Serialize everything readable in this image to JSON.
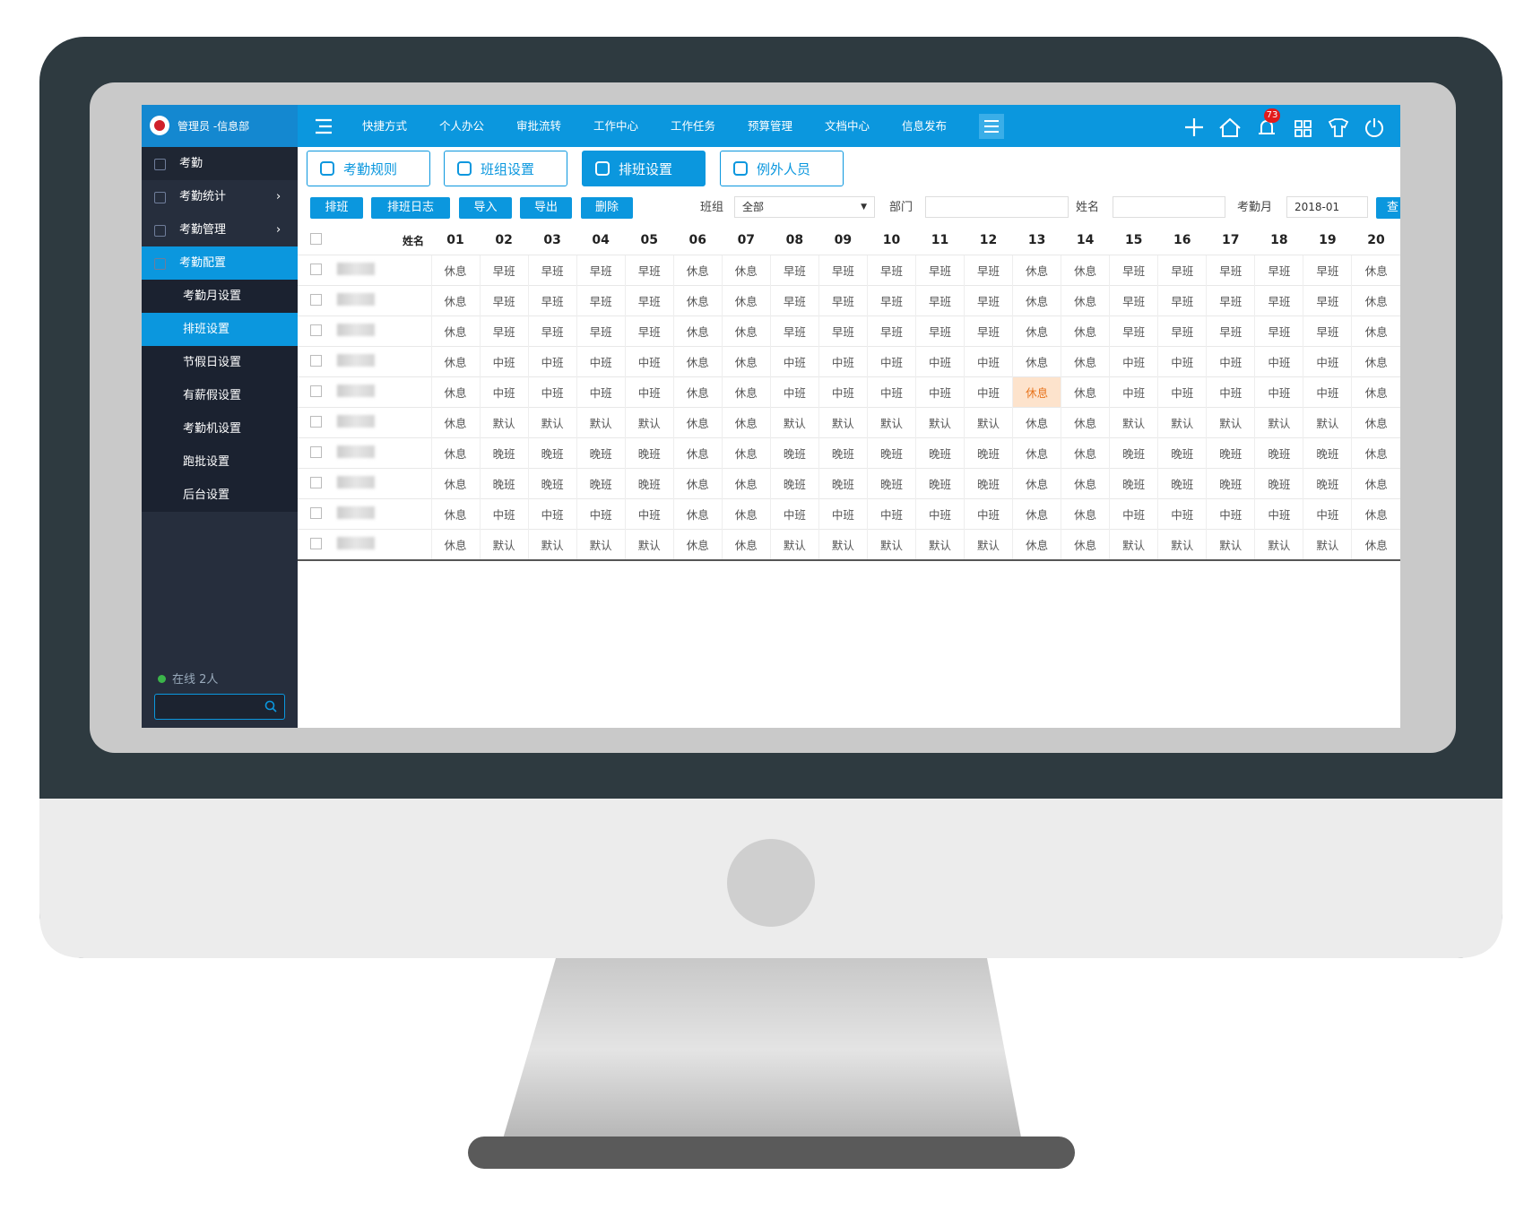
{
  "header": {
    "user": "管理员 -信息部",
    "nav": [
      "快捷方式",
      "个人办公",
      "审批流转",
      "工作中心",
      "工作任务",
      "预算管理",
      "文档中心",
      "信息发布"
    ],
    "badge": "73"
  },
  "sidebar": {
    "menu": [
      "考勤",
      "考勤统计",
      "考勤管理",
      "考勤配置"
    ],
    "submenu": [
      "考勤月设置",
      "排班设置",
      "节假日设置",
      "有薪假设置",
      "考勤机设置",
      "跑批设置",
      "后台设置"
    ],
    "online": "在线 2人"
  },
  "tabs": [
    "考勤规则",
    "班组设置",
    "排班设置",
    "例外人员"
  ],
  "toolbar": {
    "buttons": [
      "排班",
      "排班日志",
      "导入",
      "导出",
      "删除"
    ],
    "group_label": "班组",
    "group_value": "全部",
    "dept_label": "部门",
    "name_label": "姓名",
    "month_label": "考勤月",
    "month_value": "2018-01",
    "search": "查"
  },
  "table": {
    "name_header": "姓名",
    "days": [
      "01",
      "02",
      "03",
      "04",
      "05",
      "06",
      "07",
      "08",
      "09",
      "10",
      "11",
      "12",
      "13",
      "14",
      "15",
      "16",
      "17",
      "18",
      "19",
      "20"
    ],
    "rows": [
      [
        "休息",
        "早班",
        "早班",
        "早班",
        "早班",
        "休息",
        "休息",
        "早班",
        "早班",
        "早班",
        "早班",
        "早班",
        "休息",
        "休息",
        "早班",
        "早班",
        "早班",
        "早班",
        "早班",
        "休息"
      ],
      [
        "休息",
        "早班",
        "早班",
        "早班",
        "早班",
        "休息",
        "休息",
        "早班",
        "早班",
        "早班",
        "早班",
        "早班",
        "休息",
        "休息",
        "早班",
        "早班",
        "早班",
        "早班",
        "早班",
        "休息"
      ],
      [
        "休息",
        "早班",
        "早班",
        "早班",
        "早班",
        "休息",
        "休息",
        "早班",
        "早班",
        "早班",
        "早班",
        "早班",
        "休息",
        "休息",
        "早班",
        "早班",
        "早班",
        "早班",
        "早班",
        "休息"
      ],
      [
        "休息",
        "中班",
        "中班",
        "中班",
        "中班",
        "休息",
        "休息",
        "中班",
        "中班",
        "中班",
        "中班",
        "中班",
        "休息",
        "休息",
        "中班",
        "中班",
        "中班",
        "中班",
        "中班",
        "休息"
      ],
      [
        "休息",
        "中班",
        "中班",
        "中班",
        "中班",
        "休息",
        "休息",
        "中班",
        "中班",
        "中班",
        "中班",
        "中班",
        "休息",
        "休息",
        "中班",
        "中班",
        "中班",
        "中班",
        "中班",
        "休息"
      ],
      [
        "休息",
        "默认",
        "默认",
        "默认",
        "默认",
        "休息",
        "休息",
        "默认",
        "默认",
        "默认",
        "默认",
        "默认",
        "休息",
        "休息",
        "默认",
        "默认",
        "默认",
        "默认",
        "默认",
        "休息"
      ],
      [
        "休息",
        "晚班",
        "晚班",
        "晚班",
        "晚班",
        "休息",
        "休息",
        "晚班",
        "晚班",
        "晚班",
        "晚班",
        "晚班",
        "休息",
        "休息",
        "晚班",
        "晚班",
        "晚班",
        "晚班",
        "晚班",
        "休息"
      ],
      [
        "休息",
        "晚班",
        "晚班",
        "晚班",
        "晚班",
        "休息",
        "休息",
        "晚班",
        "晚班",
        "晚班",
        "晚班",
        "晚班",
        "休息",
        "休息",
        "晚班",
        "晚班",
        "晚班",
        "晚班",
        "晚班",
        "休息"
      ],
      [
        "休息",
        "中班",
        "中班",
        "中班",
        "中班",
        "休息",
        "休息",
        "中班",
        "中班",
        "中班",
        "中班",
        "中班",
        "休息",
        "休息",
        "中班",
        "中班",
        "中班",
        "中班",
        "中班",
        "休息"
      ],
      [
        "休息",
        "默认",
        "默认",
        "默认",
        "默认",
        "休息",
        "休息",
        "默认",
        "默认",
        "默认",
        "默认",
        "默认",
        "休息",
        "休息",
        "默认",
        "默认",
        "默认",
        "默认",
        "默认",
        "休息"
      ]
    ]
  }
}
